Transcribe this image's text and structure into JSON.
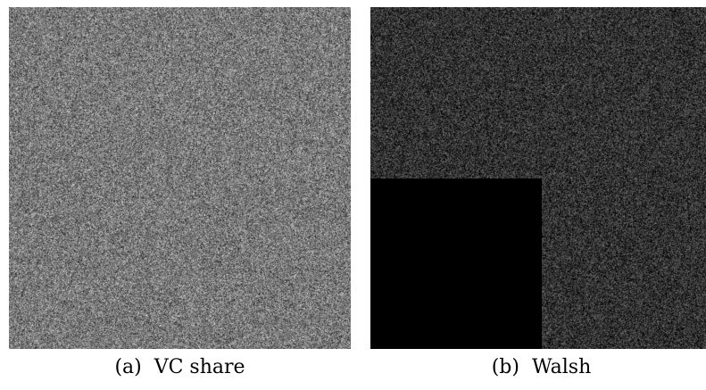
{
  "figure": {
    "panel_a": {
      "caption": "(a)  VC share",
      "noise_base_color": "#7a7a7a"
    },
    "panel_b": {
      "caption": "(b)  Walsh",
      "noise_base_color": "#2e2e2e",
      "block_color": "#000000"
    }
  }
}
